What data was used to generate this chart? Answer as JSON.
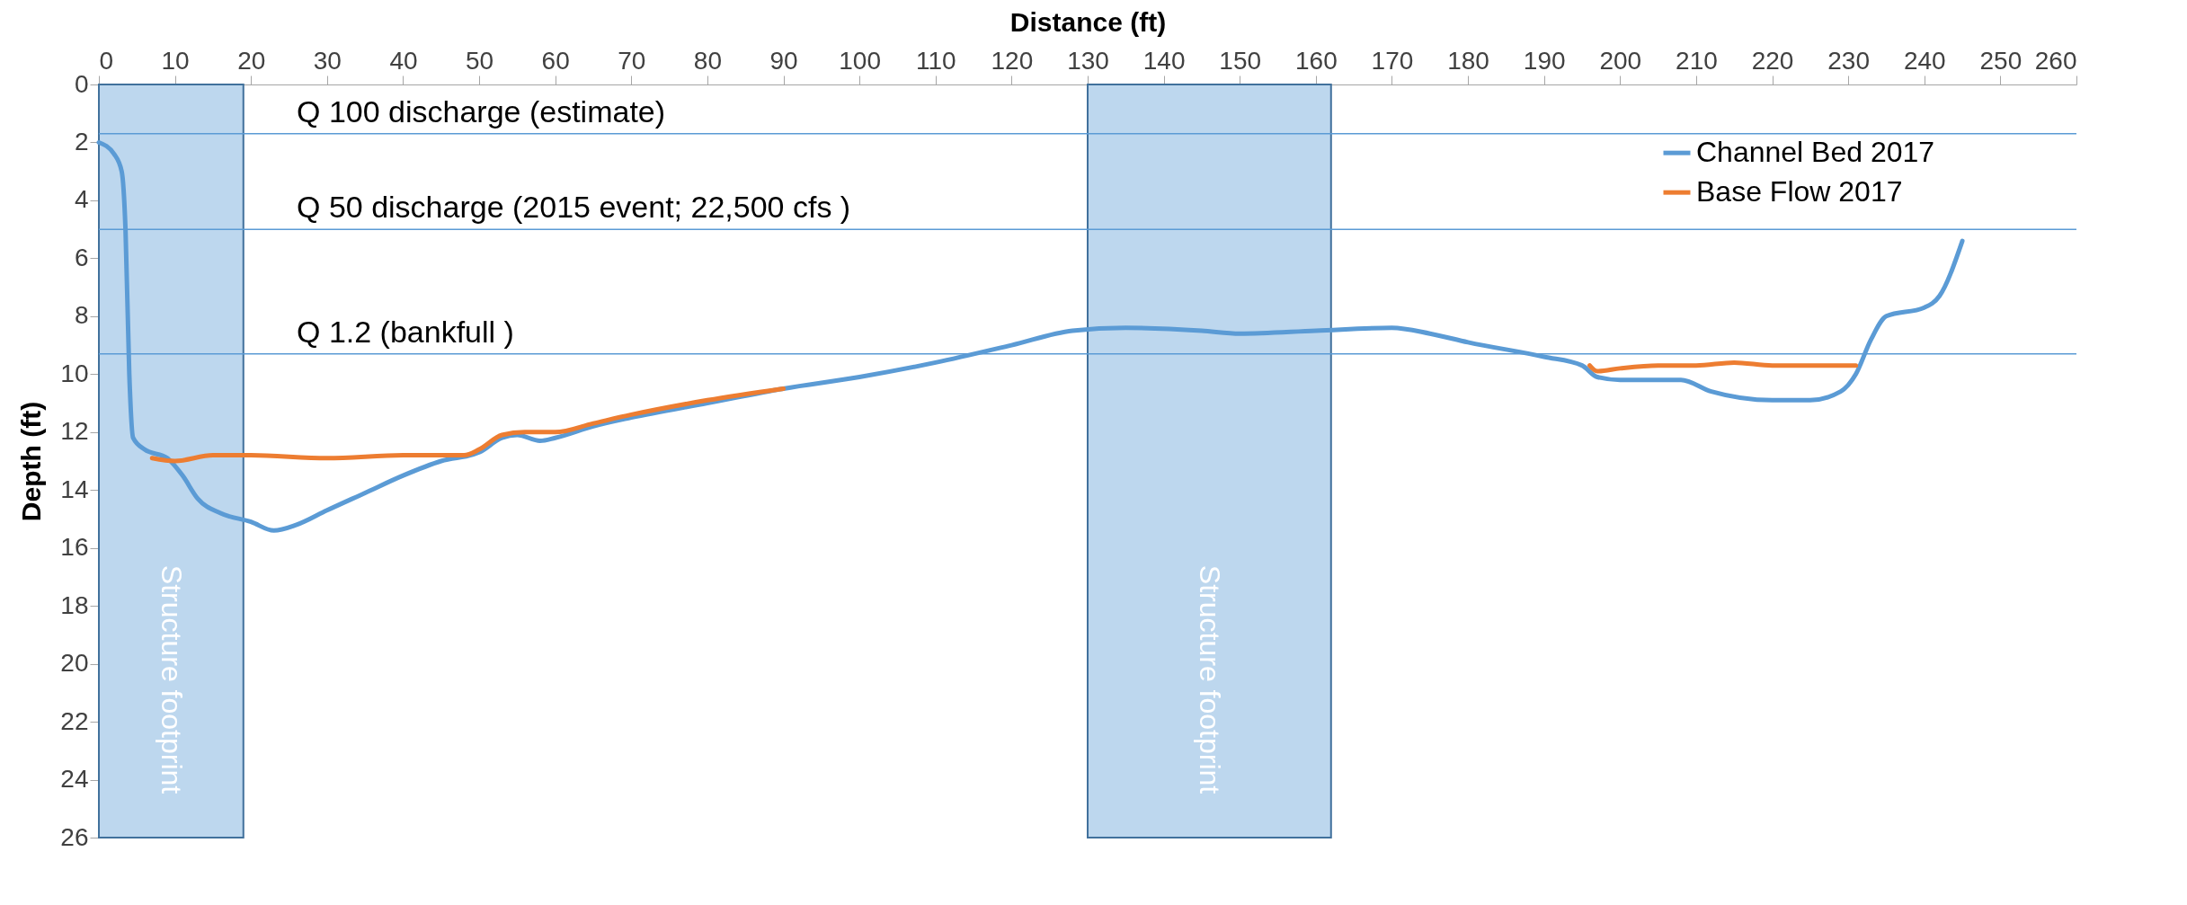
{
  "chart_data": {
    "type": "line",
    "xlabel": "Distance (ft)",
    "ylabel": "Depth (ft)",
    "xlim": [
      0,
      260
    ],
    "xticks": [
      0,
      10,
      20,
      30,
      40,
      50,
      60,
      70,
      80,
      90,
      100,
      110,
      120,
      130,
      140,
      150,
      160,
      170,
      180,
      190,
      200,
      210,
      220,
      230,
      240,
      250,
      260
    ],
    "ylim": [
      26,
      0
    ],
    "yticks": [
      0,
      2,
      4,
      6,
      8,
      10,
      12,
      14,
      16,
      18,
      20,
      22,
      24,
      26
    ],
    "grid": false,
    "legend": "top right",
    "marker": "none",
    "line_style": "solid",
    "series": [
      {
        "name": "Channel Bed 2017",
        "color": "#5b9bd5",
        "x": [
          0,
          2,
          3,
          3.5,
          4,
          4.5,
          6,
          9,
          11,
          13,
          16,
          20,
          23,
          26,
          30,
          35,
          40,
          45,
          50,
          53,
          55,
          58,
          60,
          65,
          70,
          80,
          90,
          100,
          110,
          120,
          128,
          135,
          145,
          150,
          160,
          170,
          175,
          180,
          190,
          195,
          197,
          200,
          205,
          208,
          212,
          220,
          225,
          229,
          231,
          233,
          235,
          240,
          242,
          245
        ],
        "values": [
          2.0,
          2.4,
          3.0,
          5.0,
          10.0,
          12.2,
          12.6,
          12.9,
          13.5,
          14.3,
          14.8,
          15.1,
          15.4,
          15.2,
          14.7,
          14.1,
          13.5,
          13.0,
          12.7,
          12.2,
          12.1,
          12.3,
          12.2,
          11.8,
          11.5,
          11.0,
          10.5,
          10.1,
          9.6,
          9.0,
          8.5,
          8.4,
          8.5,
          8.6,
          8.5,
          8.4,
          8.6,
          8.9,
          9.4,
          9.7,
          10.1,
          10.2,
          10.2,
          10.2,
          10.6,
          10.9,
          10.9,
          10.6,
          10.0,
          8.8,
          8.0,
          7.7,
          7.3,
          5.4
        ]
      },
      {
        "name": "Base Flow 2017",
        "color": "#ed7d31",
        "x": [
          7,
          10,
          15,
          20,
          30,
          40,
          48,
          50,
          53,
          56,
          60,
          65,
          70,
          80,
          90,
          150,
          196,
          197,
          200,
          205,
          210,
          215,
          220,
          225,
          231
        ],
        "values": [
          12.9,
          13.0,
          12.8,
          12.8,
          12.9,
          12.8,
          12.8,
          12.6,
          12.1,
          12.0,
          12.0,
          11.7,
          11.4,
          10.9,
          10.5,
          null,
          9.7,
          9.9,
          9.8,
          9.7,
          9.7,
          9.6,
          9.7,
          9.7,
          9.7
        ]
      }
    ],
    "ref_lines": [
      {
        "axis": "y",
        "value": 1.7,
        "label": "Q 100 discharge (estimate)",
        "color": "#5b9bd5"
      },
      {
        "axis": "y",
        "value": 5.0,
        "label": "Q 50 discharge (2015 event; 22,500 cfs )",
        "color": "#5b9bd5"
      },
      {
        "axis": "y",
        "value": 9.3,
        "label": "Q 1.2 (bankfull )",
        "color": "#5b9bd5"
      }
    ],
    "bands": [
      {
        "axis": "x",
        "from": 0,
        "to": 19,
        "label": "Structure footprint",
        "color": "#bdd7ee"
      },
      {
        "axis": "x",
        "from": 130,
        "to": 162,
        "label": "Structure footprint",
        "color": "#bdd7ee"
      }
    ]
  }
}
